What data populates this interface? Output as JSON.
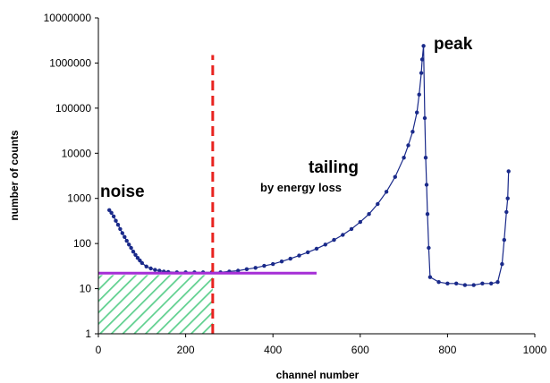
{
  "chart_data": {
    "type": "scatter",
    "xlabel": "channel number",
    "ylabel": "number of counts",
    "xlim": [
      0,
      1000
    ],
    "ylim": [
      1,
      10000000
    ],
    "y_scale": "log",
    "x_ticks": [
      "0",
      "200",
      "400",
      "600",
      "800",
      "1000"
    ],
    "y_ticks": [
      "1",
      "10",
      "100",
      "1000",
      "10000",
      "100000",
      "1000000",
      "10000000"
    ],
    "grid": false,
    "annotations": {
      "noise": "noise",
      "tailing": "tailing",
      "tailing_sub": "by energy loss",
      "peak": "peak"
    },
    "series": [
      {
        "color": "#1a2a8a",
        "points": [
          [
            25,
            550
          ],
          [
            30,
            480
          ],
          [
            35,
            400
          ],
          [
            40,
            320
          ],
          [
            45,
            260
          ],
          [
            50,
            210
          ],
          [
            55,
            170
          ],
          [
            60,
            140
          ],
          [
            65,
            115
          ],
          [
            70,
            95
          ],
          [
            75,
            80
          ],
          [
            80,
            66
          ],
          [
            85,
            56
          ],
          [
            90,
            48
          ],
          [
            95,
            42
          ],
          [
            100,
            37
          ],
          [
            110,
            31
          ],
          [
            120,
            28
          ],
          [
            130,
            26
          ],
          [
            140,
            25
          ],
          [
            150,
            24
          ],
          [
            160,
            23.5
          ],
          [
            180,
            23
          ],
          [
            200,
            23
          ],
          [
            220,
            23
          ],
          [
            240,
            23
          ],
          [
            260,
            23
          ],
          [
            280,
            23
          ],
          [
            300,
            24
          ],
          [
            320,
            25
          ],
          [
            340,
            27
          ],
          [
            360,
            29
          ],
          [
            380,
            32
          ],
          [
            400,
            35
          ],
          [
            420,
            40
          ],
          [
            440,
            46
          ],
          [
            460,
            54
          ],
          [
            480,
            64
          ],
          [
            500,
            77
          ],
          [
            520,
            95
          ],
          [
            540,
            120
          ],
          [
            560,
            155
          ],
          [
            580,
            210
          ],
          [
            600,
            300
          ],
          [
            620,
            450
          ],
          [
            640,
            750
          ],
          [
            660,
            1400
          ],
          [
            680,
            3000
          ],
          [
            700,
            8000
          ],
          [
            710,
            15000
          ],
          [
            720,
            30000
          ],
          [
            730,
            80000
          ],
          [
            735,
            200000
          ],
          [
            740,
            600000
          ],
          [
            742,
            1200000
          ],
          [
            745,
            2400000
          ],
          [
            748,
            60000
          ],
          [
            750,
            8000
          ],
          [
            752,
            2000
          ],
          [
            754,
            450
          ],
          [
            757,
            80
          ],
          [
            760,
            18
          ],
          [
            780,
            14
          ],
          [
            800,
            13
          ],
          [
            820,
            13
          ],
          [
            840,
            12
          ],
          [
            860,
            12
          ],
          [
            880,
            13
          ],
          [
            900,
            13
          ],
          [
            915,
            14
          ],
          [
            925,
            35
          ],
          [
            930,
            120
          ],
          [
            935,
            500
          ],
          [
            938,
            1000
          ],
          [
            940,
            4000
          ]
        ]
      }
    ],
    "reference_lines": [
      {
        "type": "vertical",
        "x": 262,
        "color": "#e8231f",
        "style": "dashed"
      },
      {
        "type": "horizontal",
        "y": 22,
        "x_range": [
          0,
          500
        ],
        "color": "#a62fd6"
      }
    ],
    "shaded_region": {
      "x_range": [
        0,
        262
      ],
      "y_range": [
        1,
        20
      ],
      "pattern": "diagonal-hatch",
      "color": "#5fd08f"
    }
  }
}
